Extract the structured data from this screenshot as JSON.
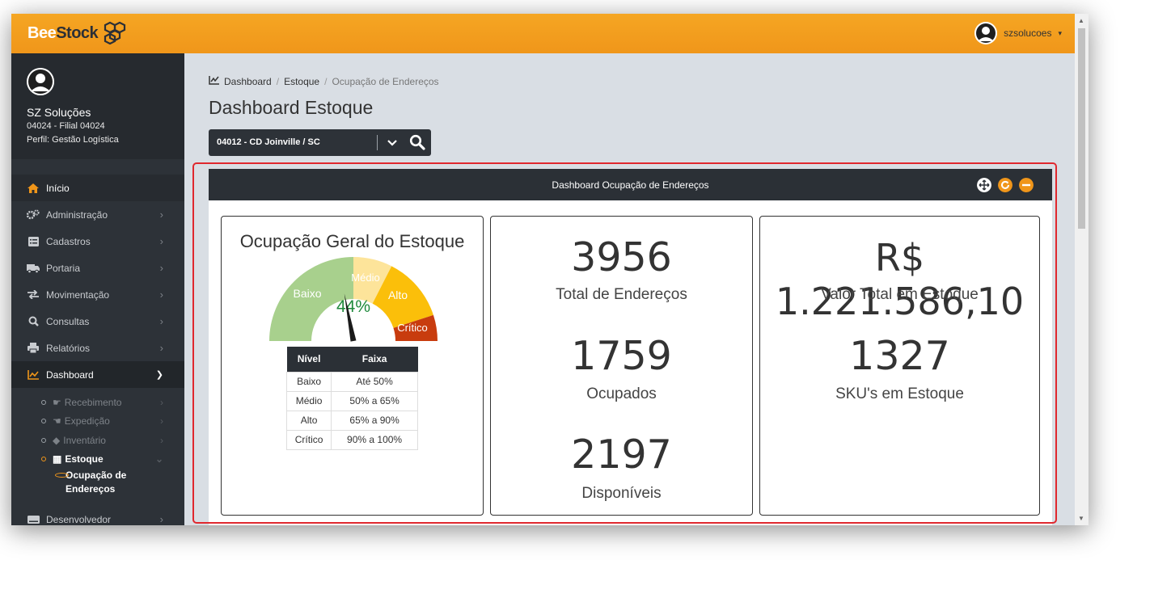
{
  "topbar": {
    "brand_bee": "Bee",
    "brand_stock": "Stock",
    "username": "szsolucoes",
    "caret": "▾"
  },
  "profile": {
    "name": "SZ Soluções",
    "branch": "04024 - Filial 04024",
    "role": "Perfil: Gestão Logística"
  },
  "menu": {
    "items": [
      {
        "label": "Início",
        "icon": "home-icon"
      },
      {
        "label": "Administração",
        "icon": "cogs-icon"
      },
      {
        "label": "Cadastros",
        "icon": "list-icon"
      },
      {
        "label": "Portaria",
        "icon": "truck-icon"
      },
      {
        "label": "Movimentação",
        "icon": "exchange-icon"
      },
      {
        "label": "Consultas",
        "icon": "search-icon"
      },
      {
        "label": "Relatórios",
        "icon": "print-icon"
      },
      {
        "label": "Dashboard",
        "icon": "chart-icon"
      }
    ],
    "dashboard_sub": [
      {
        "label": "Recebimento",
        "icon": "hand-right-icon"
      },
      {
        "label": "Expedição",
        "icon": "hand-left-icon"
      },
      {
        "label": "Inventário",
        "icon": "tags-icon"
      },
      {
        "label": "Estoque",
        "icon": "table-icon"
      }
    ],
    "estoque_sub_line1": "Ocupação de",
    "estoque_sub_line2": "Endereços",
    "developer": "Desenvolvedor"
  },
  "breadcrumb": {
    "items": [
      "Dashboard",
      "Estoque",
      "Ocupação de Endereços"
    ],
    "separator": "/"
  },
  "page": {
    "title": "Dashboard Estoque",
    "selector_value": "04012 - CD Joinville / SC"
  },
  "panel": {
    "title": "Dashboard Ocupação de Endereços"
  },
  "gauge_card": {
    "title": "Ocupação Geral do Estoque",
    "value_text": "44%",
    "value": 44,
    "segments": [
      {
        "label": "Baixo",
        "from": 0,
        "to": 50,
        "color": "#a8d08d"
      },
      {
        "label": "Médio",
        "from": 50,
        "to": 65,
        "color": "#fde49a"
      },
      {
        "label": "Alto",
        "from": 65,
        "to": 90,
        "color": "#fbbf0a"
      },
      {
        "label": "Crítico",
        "from": 90,
        "to": 100,
        "color": "#c83c0e"
      }
    ],
    "table_header": [
      "Nível",
      "Faixa"
    ],
    "table_rows": [
      [
        "Baixo",
        "Até 50%"
      ],
      [
        "Médio",
        "50% a 65%"
      ],
      [
        "Alto",
        "65% a 90%"
      ],
      [
        "Crítico",
        "90% a 100%"
      ]
    ]
  },
  "addresses_card": {
    "total": "3956",
    "total_label": "Total de Endereços",
    "occupied": "1759",
    "occupied_label": "Ocupados",
    "available": "2197",
    "available_label": "Disponíveis"
  },
  "value_card": {
    "total_value": "R$ 1.221.586,10",
    "total_value_label": "Valor Total em Estoque",
    "sku": "1327",
    "sku_label": "SKU's em Estoque"
  },
  "colors": {
    "accent": "#f0961a",
    "dark": "#2d3238",
    "highlight": "#e0282e",
    "gauge_text": "#1f8a3c"
  }
}
